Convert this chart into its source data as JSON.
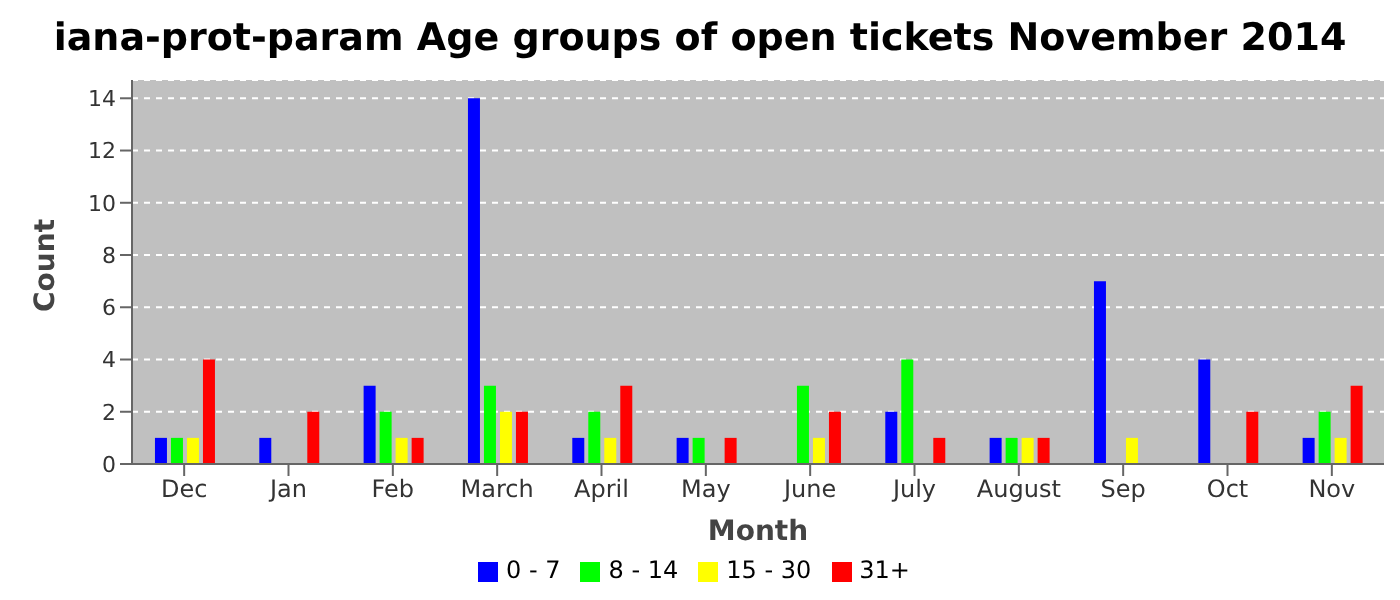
{
  "chart_data": {
    "type": "bar",
    "title": "iana-prot-param Age groups of open tickets November 2014",
    "xlabel": "Month",
    "ylabel": "Count",
    "categories": [
      "Dec",
      "Jan",
      "Feb",
      "March",
      "April",
      "May",
      "June",
      "July",
      "August",
      "Sep",
      "Oct",
      "Nov"
    ],
    "series": [
      {
        "name": "0 - 7",
        "color": "#0000ff",
        "values": [
          1,
          1,
          3,
          14,
          1,
          1,
          0,
          2,
          1,
          7,
          4,
          1
        ]
      },
      {
        "name": "8 - 14",
        "color": "#00ff00",
        "values": [
          1,
          0,
          2,
          3,
          2,
          1,
          3,
          4,
          1,
          0,
          0,
          2
        ]
      },
      {
        "name": "15 - 30",
        "color": "#ffff00",
        "values": [
          1,
          0,
          1,
          2,
          1,
          0,
          1,
          0,
          1,
          1,
          0,
          1
        ]
      },
      {
        "name": "31+",
        "color": "#ff0000",
        "values": [
          4,
          2,
          1,
          2,
          3,
          1,
          2,
          1,
          1,
          0,
          2,
          3
        ]
      }
    ],
    "ylim": [
      0,
      14.7
    ],
    "yticks": [
      0,
      2,
      4,
      6,
      8,
      10,
      12,
      14
    ],
    "grid": "y",
    "legend": "bottom"
  }
}
